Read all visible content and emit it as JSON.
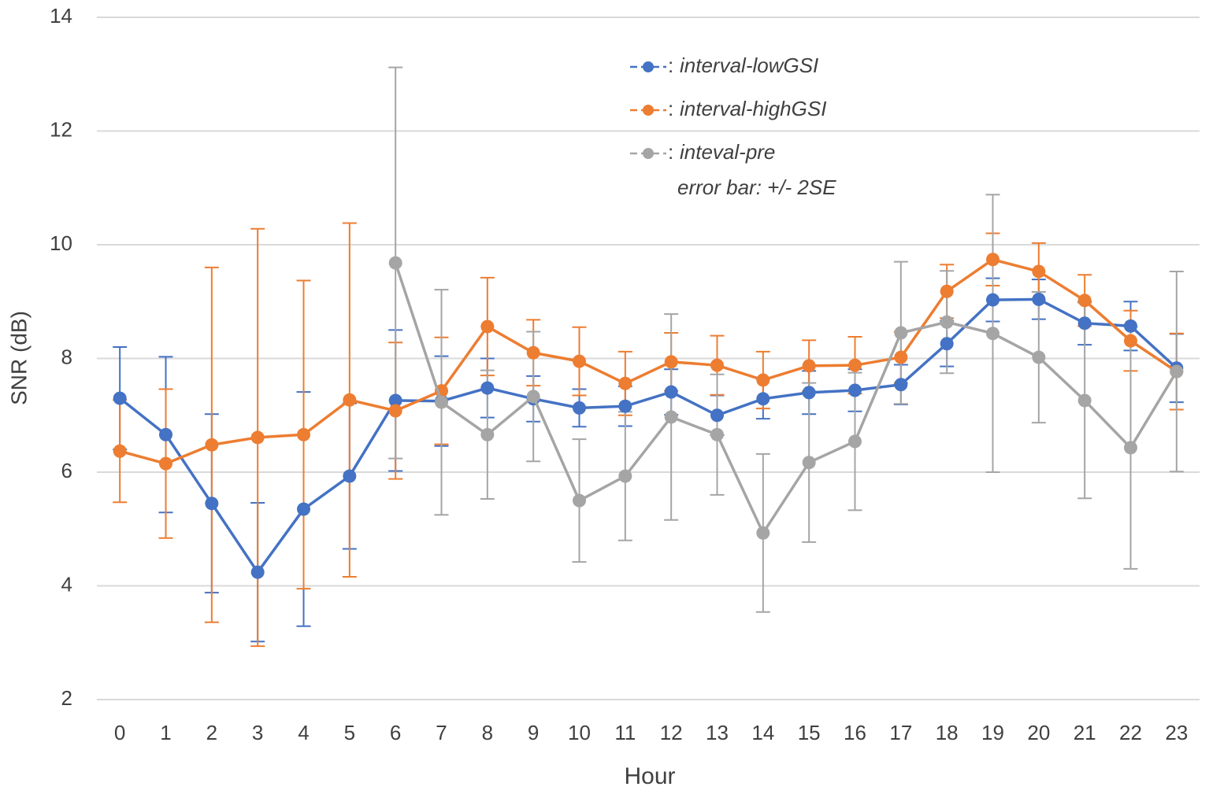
{
  "chart_data": {
    "type": "line",
    "xlabel": "Hour",
    "ylabel": "SNR (dB)",
    "categories": [
      "0",
      "1",
      "2",
      "3",
      "4",
      "5",
      "6",
      "7",
      "8",
      "9",
      "10",
      "11",
      "12",
      "13",
      "14",
      "15",
      "16",
      "17",
      "18",
      "19",
      "20",
      "21",
      "22",
      "23"
    ],
    "ylim": [
      2,
      14
    ],
    "yticks": [
      2,
      4,
      6,
      8,
      10,
      12,
      14
    ],
    "grid": true,
    "legend_separator": ":",
    "annotation": "error bar: +/- 2SE",
    "series": [
      {
        "name": "interval-lowGSI",
        "color": "#4472c4",
        "values": [
          7.3,
          6.66,
          5.45,
          4.24,
          5.35,
          5.93,
          7.26,
          7.25,
          7.48,
          7.29,
          7.13,
          7.16,
          7.41,
          7.0,
          7.29,
          7.4,
          7.44,
          7.54,
          8.26,
          9.03,
          9.04,
          8.62,
          8.57,
          7.83
        ],
        "errors": [
          0.9,
          1.37,
          1.57,
          1.22,
          2.06,
          1.28,
          1.24,
          0.79,
          0.52,
          0.4,
          0.33,
          0.35,
          0.4,
          0.35,
          0.35,
          0.38,
          0.37,
          0.35,
          0.4,
          0.38,
          0.35,
          0.38,
          0.43,
          0.6
        ]
      },
      {
        "name": "interval-highGSI",
        "color": "#ed7d31",
        "values": [
          6.37,
          6.15,
          6.48,
          6.61,
          6.66,
          7.27,
          7.08,
          7.43,
          8.56,
          8.1,
          7.95,
          7.56,
          7.94,
          7.88,
          7.62,
          7.87,
          7.88,
          8.02,
          9.18,
          9.74,
          9.53,
          9.02,
          8.31,
          7.77
        ],
        "errors": [
          0.9,
          1.31,
          3.12,
          3.67,
          2.71,
          3.11,
          1.2,
          0.94,
          0.86,
          0.58,
          0.6,
          0.56,
          0.51,
          0.52,
          0.5,
          0.45,
          0.5,
          0.45,
          0.47,
          0.46,
          0.5,
          0.45,
          0.53,
          0.67
        ]
      },
      {
        "name": "inteval-pre",
        "color": "#a5a5a5",
        "values": [
          null,
          null,
          null,
          null,
          null,
          null,
          9.68,
          7.23,
          6.66,
          7.33,
          5.5,
          5.93,
          6.97,
          6.66,
          4.93,
          6.17,
          6.54,
          8.45,
          8.64,
          8.44,
          8.02,
          7.26,
          6.43,
          7.77
        ],
        "errors": [
          null,
          null,
          null,
          null,
          null,
          null,
          3.44,
          1.98,
          1.13,
          1.14,
          1.08,
          1.13,
          1.81,
          1.06,
          1.39,
          1.4,
          1.21,
          1.25,
          0.9,
          2.44,
          1.15,
          1.72,
          2.13,
          1.76
        ]
      }
    ]
  }
}
